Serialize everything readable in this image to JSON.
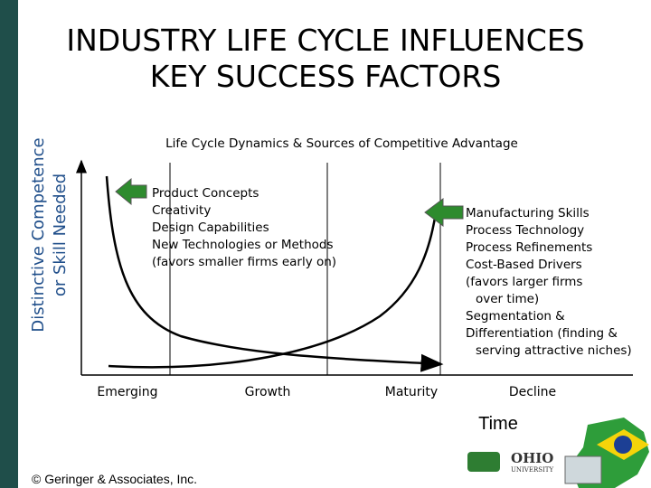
{
  "header": {
    "title": [
      "INDUSTRY LIFE CYCLE INFLUENCES",
      "KEY SUCCESS FACTORS"
    ]
  },
  "y_axis_label": [
    "Distinctive Competence",
    "or Skill Needed"
  ],
  "subtitle": "Life Cycle Dynamics & Sources of Competitive Advantage",
  "stages": [
    "Emerging",
    "Growth",
    "Maturity",
    "Decline"
  ],
  "x_axis_label": "Time",
  "left_factors": [
    "Product Concepts",
    "Creativity",
    "Design Capabilities",
    "New Technologies or Methods",
    "(favors smaller firms early on)"
  ],
  "right_factors": [
    "Manufacturing Skills",
    "Process Technology",
    "Process Refinements",
    "Cost-Based Drivers",
    "(favors larger firms",
    "over time)",
    "Segmentation &",
    "Differentiation (finding &",
    "serving attractive niches)"
  ],
  "footer": "© Geringer & Associates, Inc.",
  "logo_text": [
    "OHIO",
    "UNIVERSITY"
  ]
}
